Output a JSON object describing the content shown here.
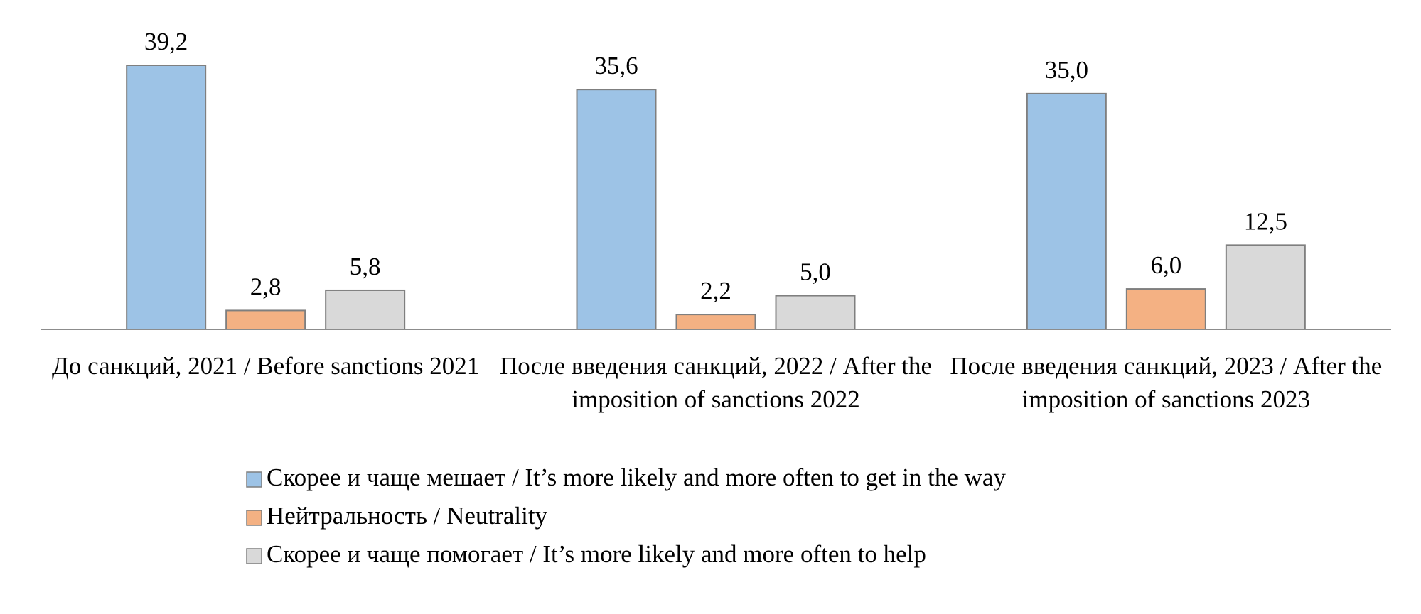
{
  "chart_data": {
    "type": "bar",
    "categories": [
      "До санкций, 2021 / Before sanctions 2021",
      "После введения санкций, 2022 / After the imposition of sanctions 2022",
      "После введения санкций, 2023 / After the imposition of sanctions 2023"
    ],
    "series": [
      {
        "name": "Скорее и чаще мешает / It’s more likely and more often to get in the way",
        "color": "#9dc3e6",
        "values": [
          39.2,
          35.6,
          35.0
        ],
        "value_labels": [
          "39,2",
          "35,6",
          "35,0"
        ]
      },
      {
        "name": "Нейтральность / Neutrality",
        "color": "#f4b183",
        "values": [
          2.8,
          2.2,
          6.0
        ],
        "value_labels": [
          "2,8",
          "2,2",
          "6,0"
        ]
      },
      {
        "name": "Скорее и чаще помогает / It’s more likely and more often to help",
        "color": "#d9d9d9",
        "values": [
          5.8,
          5.0,
          12.5
        ],
        "value_labels": [
          "5,8",
          "5,0",
          "12,5"
        ]
      }
    ],
    "legend": "bottom"
  }
}
